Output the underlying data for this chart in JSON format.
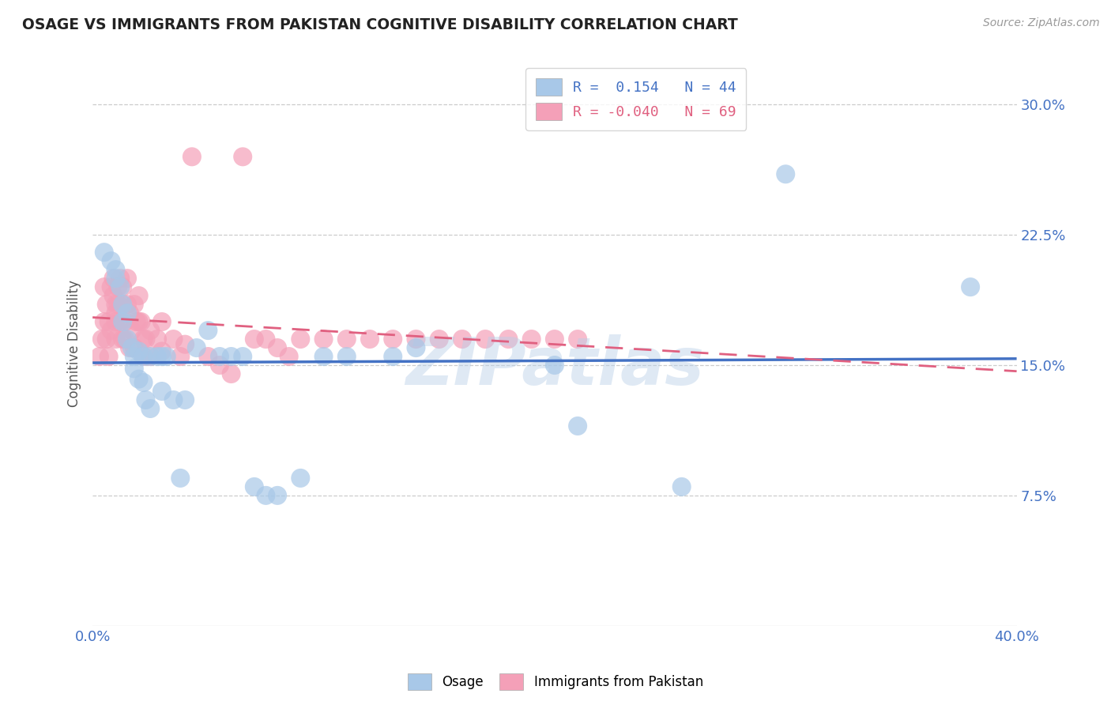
{
  "title": "OSAGE VS IMMIGRANTS FROM PAKISTAN COGNITIVE DISABILITY CORRELATION CHART",
  "source": "Source: ZipAtlas.com",
  "ylabel": "Cognitive Disability",
  "x_min": 0.0,
  "x_max": 0.4,
  "y_min": 0.0,
  "y_max": 0.325,
  "y_ticks": [
    0.075,
    0.15,
    0.225,
    0.3
  ],
  "y_tick_labels": [
    "7.5%",
    "15.0%",
    "22.5%",
    "30.0%"
  ],
  "x_ticks": [
    0.0,
    0.05,
    0.1,
    0.15,
    0.2,
    0.25,
    0.3,
    0.35,
    0.4
  ],
  "watermark": "ZIPatlas",
  "osage_color": "#a8c8e8",
  "pakistan_color": "#f4a0b8",
  "osage_line_color": "#4472c4",
  "pakistan_line_color": "#e06080",
  "background_color": "#ffffff",
  "grid_color": "#cccccc",
  "title_color": "#222222",
  "axis_label_color": "#4472c4",
  "right_tick_color": "#4472c4",
  "osage_R": 0.154,
  "osage_N": 44,
  "pakistan_R": -0.04,
  "pakistan_N": 69,
  "osage_scatter_x": [
    0.005,
    0.008,
    0.01,
    0.01,
    0.012,
    0.013,
    0.013,
    0.015,
    0.015,
    0.017,
    0.018,
    0.018,
    0.02,
    0.02,
    0.022,
    0.022,
    0.023,
    0.025,
    0.025,
    0.028,
    0.03,
    0.03,
    0.032,
    0.035,
    0.038,
    0.04,
    0.045,
    0.05,
    0.055,
    0.06,
    0.065,
    0.07,
    0.075,
    0.08,
    0.09,
    0.1,
    0.11,
    0.13,
    0.14,
    0.2,
    0.21,
    0.255,
    0.3,
    0.38
  ],
  "osage_scatter_y": [
    0.215,
    0.21,
    0.205,
    0.2,
    0.195,
    0.185,
    0.175,
    0.18,
    0.165,
    0.16,
    0.155,
    0.148,
    0.158,
    0.142,
    0.155,
    0.14,
    0.13,
    0.155,
    0.125,
    0.155,
    0.155,
    0.135,
    0.155,
    0.13,
    0.085,
    0.13,
    0.16,
    0.17,
    0.155,
    0.155,
    0.155,
    0.08,
    0.075,
    0.075,
    0.085,
    0.155,
    0.155,
    0.155,
    0.16,
    0.15,
    0.115,
    0.08,
    0.26,
    0.195
  ],
  "pakistan_scatter_x": [
    0.003,
    0.004,
    0.005,
    0.005,
    0.006,
    0.006,
    0.007,
    0.007,
    0.008,
    0.008,
    0.009,
    0.009,
    0.01,
    0.01,
    0.01,
    0.01,
    0.011,
    0.011,
    0.012,
    0.012,
    0.013,
    0.013,
    0.013,
    0.014,
    0.014,
    0.015,
    0.015,
    0.016,
    0.016,
    0.017,
    0.018,
    0.018,
    0.019,
    0.02,
    0.02,
    0.021,
    0.022,
    0.022,
    0.023,
    0.025,
    0.025,
    0.028,
    0.03,
    0.03,
    0.035,
    0.038,
    0.04,
    0.043,
    0.05,
    0.055,
    0.06,
    0.065,
    0.07,
    0.075,
    0.08,
    0.085,
    0.09,
    0.1,
    0.11,
    0.12,
    0.13,
    0.14,
    0.15,
    0.16,
    0.17,
    0.18,
    0.19,
    0.2,
    0.21
  ],
  "pakistan_scatter_y": [
    0.155,
    0.165,
    0.195,
    0.175,
    0.185,
    0.165,
    0.175,
    0.155,
    0.195,
    0.17,
    0.2,
    0.19,
    0.185,
    0.18,
    0.175,
    0.165,
    0.195,
    0.185,
    0.2,
    0.175,
    0.195,
    0.185,
    0.165,
    0.175,
    0.165,
    0.2,
    0.185,
    0.18,
    0.16,
    0.17,
    0.185,
    0.16,
    0.175,
    0.175,
    0.19,
    0.175,
    0.165,
    0.155,
    0.165,
    0.17,
    0.155,
    0.165,
    0.175,
    0.158,
    0.165,
    0.155,
    0.162,
    0.27,
    0.155,
    0.15,
    0.145,
    0.27,
    0.165,
    0.165,
    0.16,
    0.155,
    0.165,
    0.165,
    0.165,
    0.165,
    0.165,
    0.165,
    0.165,
    0.165,
    0.165,
    0.165,
    0.165,
    0.165,
    0.165
  ]
}
